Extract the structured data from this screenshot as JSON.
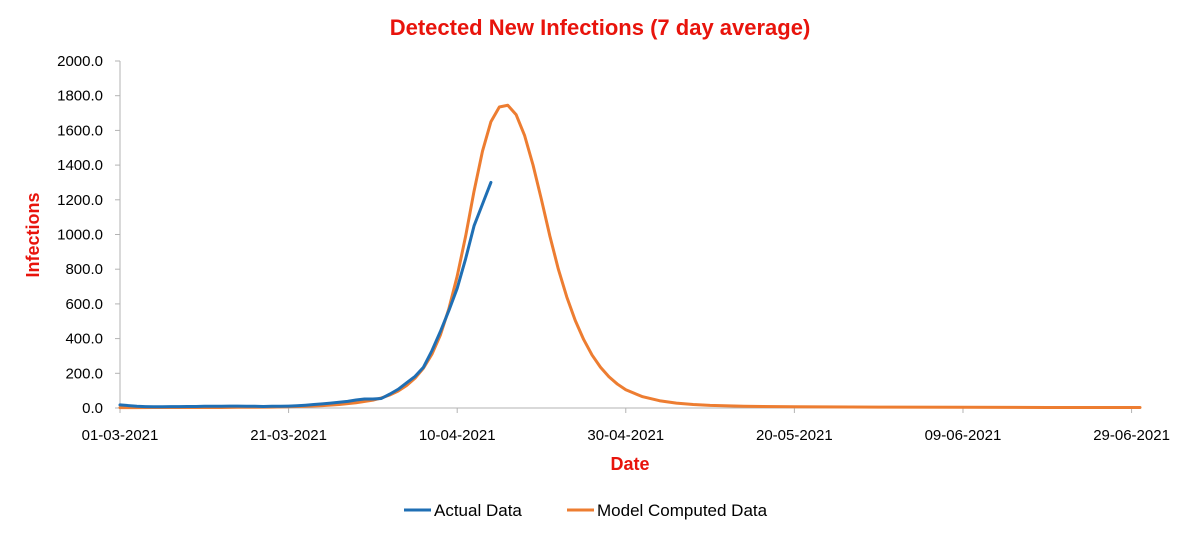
{
  "chart_data": {
    "type": "line",
    "title": "Detected New Infections (7 day average)",
    "xlabel": "Date",
    "ylabel": "Infections",
    "x_tick_labels": [
      "01-03-2021",
      "21-03-2021",
      "10-04-2021",
      "30-04-2021",
      "20-05-2021",
      "09-06-2021",
      "29-06-2021"
    ],
    "y_tick_labels": [
      "0.0",
      "200.0",
      "400.0",
      "600.0",
      "800.0",
      "1000.0",
      "1200.0",
      "1400.0",
      "1600.0",
      "1800.0",
      "2000.0"
    ],
    "ylim": [
      0,
      2000
    ],
    "xlim": [
      "2021-03-01",
      "2021-06-30"
    ],
    "grid": false,
    "legend_position": "bottom",
    "series": [
      {
        "name": "Actual Data",
        "color": "#1f6fb4",
        "points": [
          [
            "2021-03-01",
            18
          ],
          [
            "2021-03-02",
            14
          ],
          [
            "2021-03-03",
            10
          ],
          [
            "2021-03-04",
            8
          ],
          [
            "2021-03-05",
            7
          ],
          [
            "2021-03-06",
            7
          ],
          [
            "2021-03-07",
            8
          ],
          [
            "2021-03-08",
            8
          ],
          [
            "2021-03-09",
            9
          ],
          [
            "2021-03-10",
            9
          ],
          [
            "2021-03-11",
            10
          ],
          [
            "2021-03-12",
            10
          ],
          [
            "2021-03-13",
            10
          ],
          [
            "2021-03-14",
            11
          ],
          [
            "2021-03-15",
            11
          ],
          [
            "2021-03-16",
            10
          ],
          [
            "2021-03-17",
            10
          ],
          [
            "2021-03-18",
            9
          ],
          [
            "2021-03-19",
            10
          ],
          [
            "2021-03-20",
            10
          ],
          [
            "2021-03-21",
            11
          ],
          [
            "2021-03-22",
            13
          ],
          [
            "2021-03-23",
            16
          ],
          [
            "2021-03-24",
            20
          ],
          [
            "2021-03-25",
            24
          ],
          [
            "2021-03-26",
            28
          ],
          [
            "2021-03-27",
            33
          ],
          [
            "2021-03-28",
            38
          ],
          [
            "2021-03-29",
            46
          ],
          [
            "2021-03-30",
            52
          ],
          [
            "2021-03-31",
            52
          ],
          [
            "2021-04-01",
            55
          ],
          [
            "2021-04-02",
            80
          ],
          [
            "2021-04-03",
            108
          ],
          [
            "2021-04-04",
            145
          ],
          [
            "2021-04-05",
            182
          ],
          [
            "2021-04-06",
            235
          ],
          [
            "2021-04-07",
            330
          ],
          [
            "2021-04-08",
            440
          ],
          [
            "2021-04-09",
            560
          ],
          [
            "2021-04-10",
            690
          ],
          [
            "2021-04-11",
            860
          ],
          [
            "2021-04-12",
            1050
          ],
          [
            "2021-04-13",
            1175
          ],
          [
            "2021-04-14",
            1300
          ]
        ]
      },
      {
        "name": "Model Computed Data",
        "color": "#ed7d31",
        "points": [
          [
            "2021-03-01",
            2
          ],
          [
            "2021-03-03",
            2
          ],
          [
            "2021-03-05",
            3
          ],
          [
            "2021-03-07",
            3
          ],
          [
            "2021-03-09",
            3
          ],
          [
            "2021-03-11",
            3
          ],
          [
            "2021-03-13",
            3
          ],
          [
            "2021-03-15",
            4
          ],
          [
            "2021-03-17",
            4
          ],
          [
            "2021-03-19",
            5
          ],
          [
            "2021-03-21",
            7
          ],
          [
            "2021-03-23",
            10
          ],
          [
            "2021-03-25",
            14
          ],
          [
            "2021-03-27",
            20
          ],
          [
            "2021-03-29",
            30
          ],
          [
            "2021-03-31",
            45
          ],
          [
            "2021-04-01",
            58
          ],
          [
            "2021-04-02",
            75
          ],
          [
            "2021-04-03",
            98
          ],
          [
            "2021-04-04",
            130
          ],
          [
            "2021-04-05",
            172
          ],
          [
            "2021-04-06",
            230
          ],
          [
            "2021-04-07",
            310
          ],
          [
            "2021-04-08",
            420
          ],
          [
            "2021-04-09",
            570
          ],
          [
            "2021-04-10",
            760
          ],
          [
            "2021-04-11",
            990
          ],
          [
            "2021-04-12",
            1250
          ],
          [
            "2021-04-13",
            1480
          ],
          [
            "2021-04-14",
            1650
          ],
          [
            "2021-04-15",
            1735
          ],
          [
            "2021-04-16",
            1745
          ],
          [
            "2021-04-17",
            1690
          ],
          [
            "2021-04-18",
            1570
          ],
          [
            "2021-04-19",
            1400
          ],
          [
            "2021-04-20",
            1200
          ],
          [
            "2021-04-21",
            990
          ],
          [
            "2021-04-22",
            800
          ],
          [
            "2021-04-23",
            640
          ],
          [
            "2021-04-24",
            505
          ],
          [
            "2021-04-25",
            395
          ],
          [
            "2021-04-26",
            305
          ],
          [
            "2021-04-27",
            235
          ],
          [
            "2021-04-28",
            180
          ],
          [
            "2021-04-29",
            138
          ],
          [
            "2021-04-30",
            105
          ],
          [
            "2021-05-02",
            65
          ],
          [
            "2021-05-04",
            42
          ],
          [
            "2021-05-06",
            28
          ],
          [
            "2021-05-08",
            20
          ],
          [
            "2021-05-10",
            15
          ],
          [
            "2021-05-14",
            10
          ],
          [
            "2021-05-20",
            7
          ],
          [
            "2021-05-30",
            5
          ],
          [
            "2021-06-09",
            4
          ],
          [
            "2021-06-19",
            3
          ],
          [
            "2021-06-30",
            3
          ]
        ]
      }
    ]
  }
}
